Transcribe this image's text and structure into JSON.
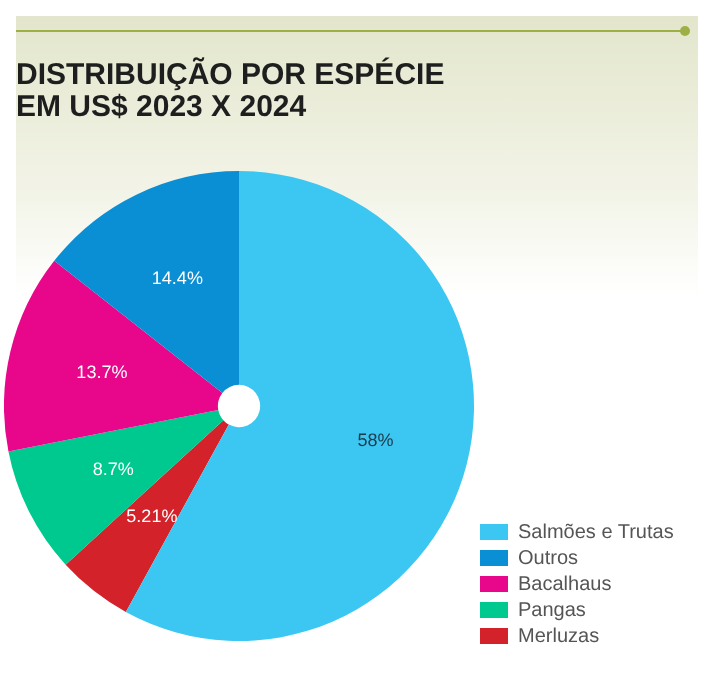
{
  "chart_data": {
    "type": "pie",
    "title": "DISTRIBUIÇÃO POR ESPÉCIE\nEM US$ 2023 X 2024",
    "categories": [
      "Salmões e Trutas",
      "Outros",
      "Bacalhaus",
      "Pangas",
      "Merluzas"
    ],
    "values": [
      58,
      14.4,
      13.7,
      8.7,
      5.21
    ],
    "colors": [
      "#3cc6f2",
      "#0a8fd4",
      "#e8068a",
      "#00c98f",
      "#d3222a"
    ],
    "value_labels": [
      "58%",
      "14.4%",
      "13.7%",
      "8.7%",
      "5.21%"
    ],
    "legend": "bottom right"
  }
}
